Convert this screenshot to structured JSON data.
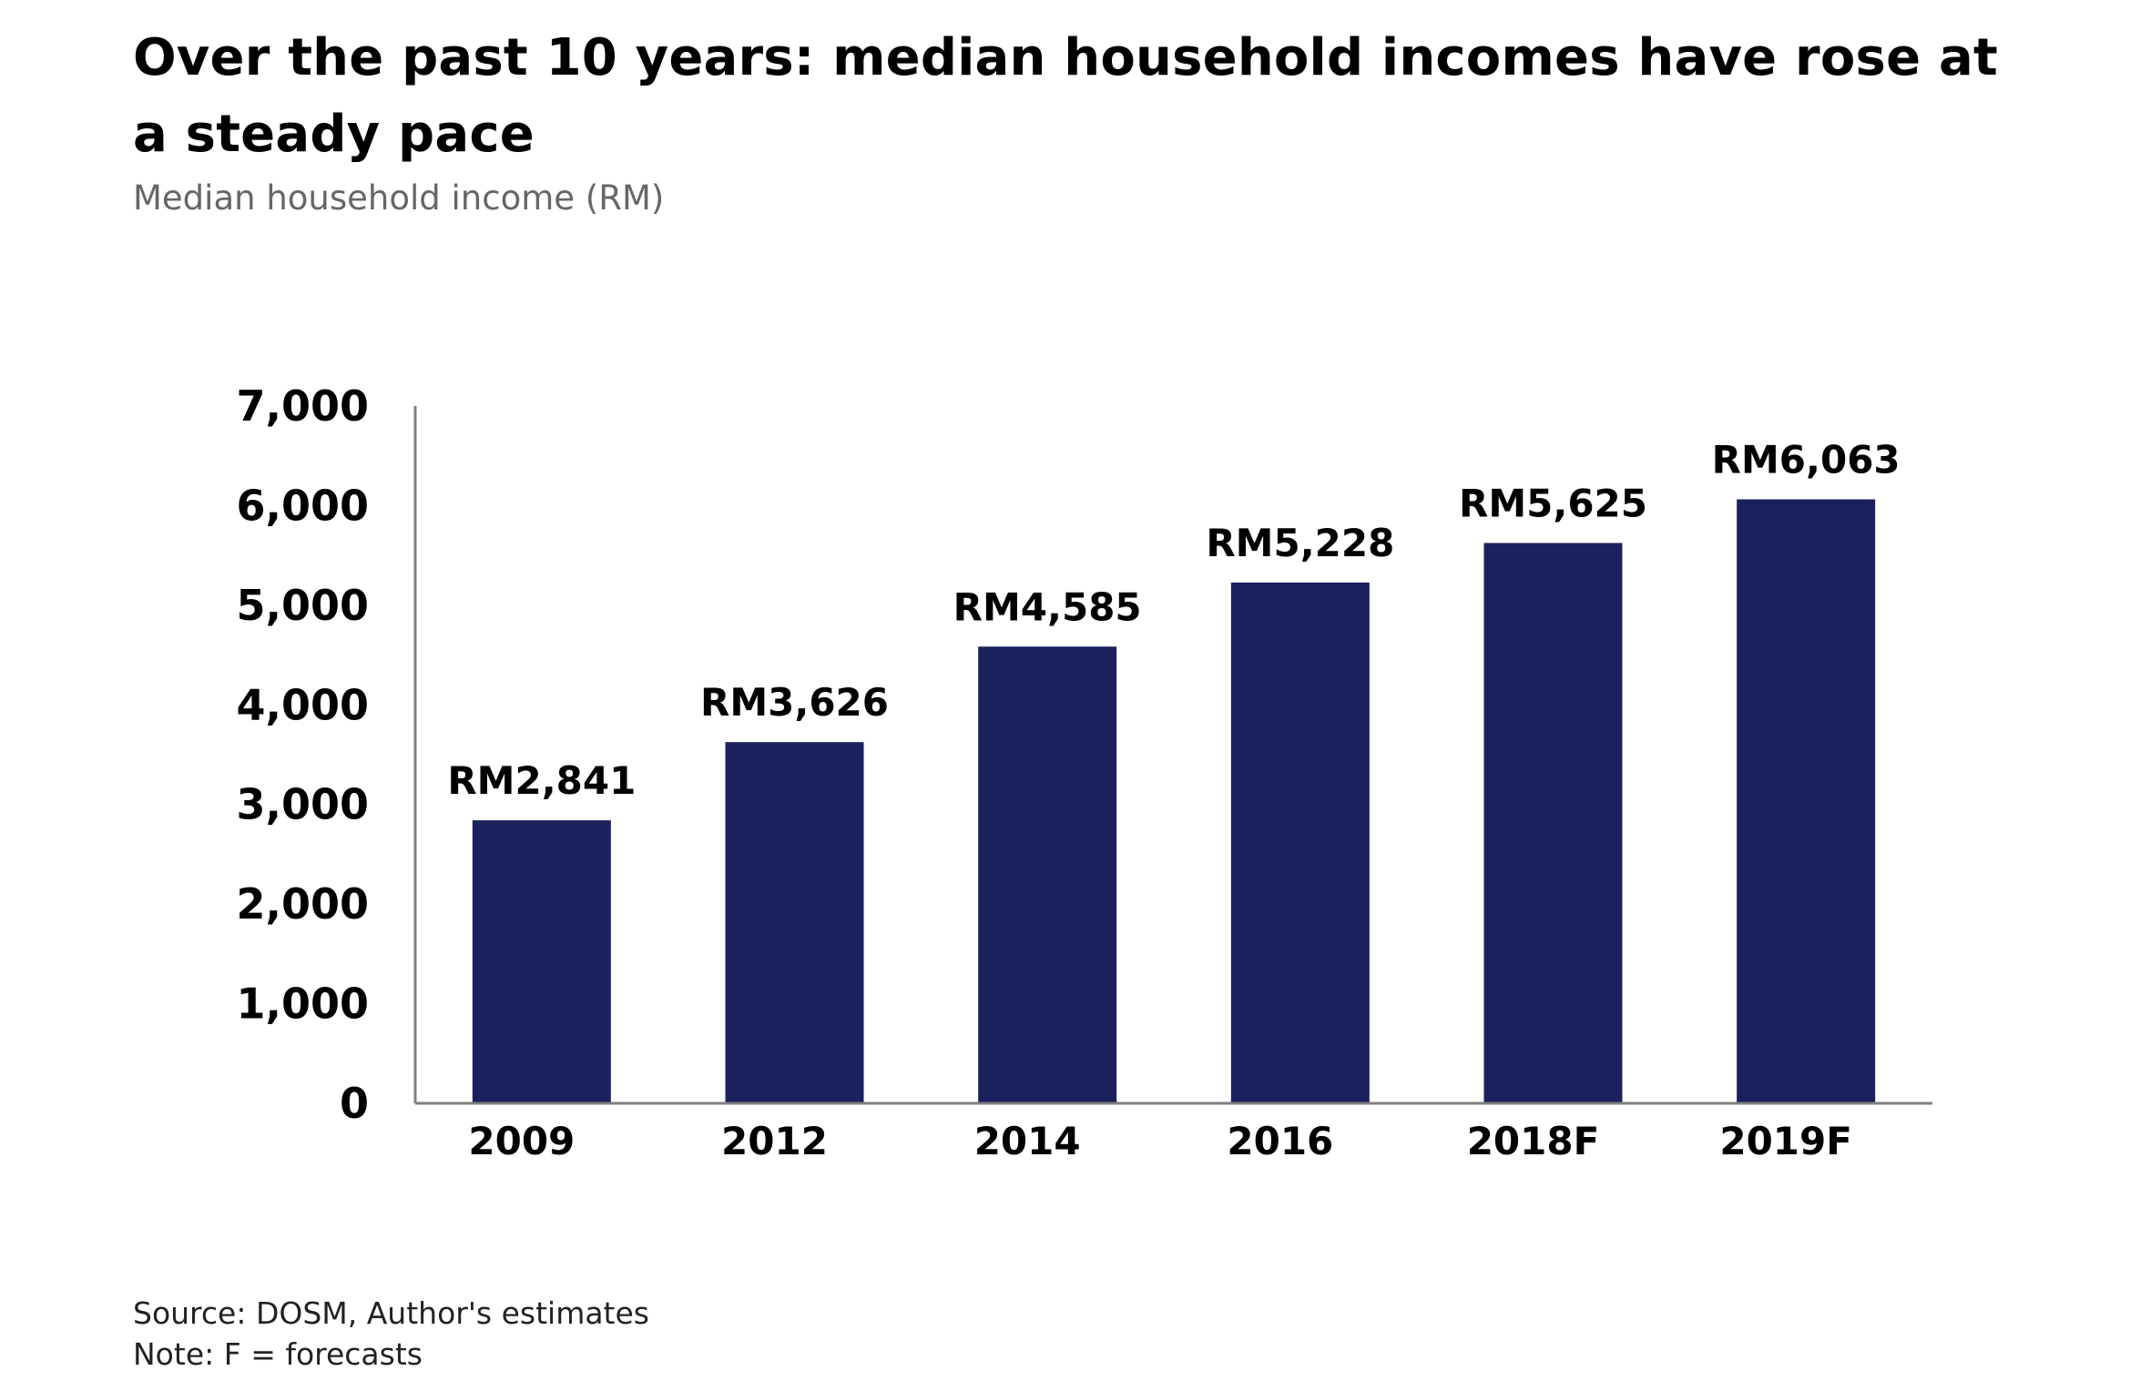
{
  "header": {
    "title": "Over the past 10 years: median household incomes have rose at a steady pace",
    "subtitle": "Median household income (RM)"
  },
  "footer": {
    "source": "Source: DOSM, Author's estimates",
    "note": "Note: F = forecasts"
  },
  "colors": {
    "bar": "#1b215c",
    "axis": "#7f7f7f"
  },
  "chart_data": {
    "type": "bar",
    "categories": [
      "2009",
      "2012",
      "2014",
      "2016",
      "2018F",
      "2019F"
    ],
    "values": [
      2841,
      3626,
      4585,
      5228,
      5625,
      6063
    ],
    "data_labels": [
      "RM2,841",
      "RM3,626",
      "RM4,585",
      "RM5,228",
      "RM5,625",
      "RM6,063"
    ],
    "title": "Over the past 10 years: median household incomes have rose at a steady pace",
    "subtitle": "Median household income (RM)",
    "xlabel": "",
    "ylabel": "",
    "ylim": [
      0,
      7000
    ],
    "yticks": [
      0,
      1000,
      2000,
      3000,
      4000,
      5000,
      6000,
      7000
    ],
    "ytick_labels": [
      "0",
      "1,000",
      "2,000",
      "3,000",
      "4,000",
      "5,000",
      "6,000",
      "7,000"
    ],
    "grid": false,
    "legend": "none"
  }
}
